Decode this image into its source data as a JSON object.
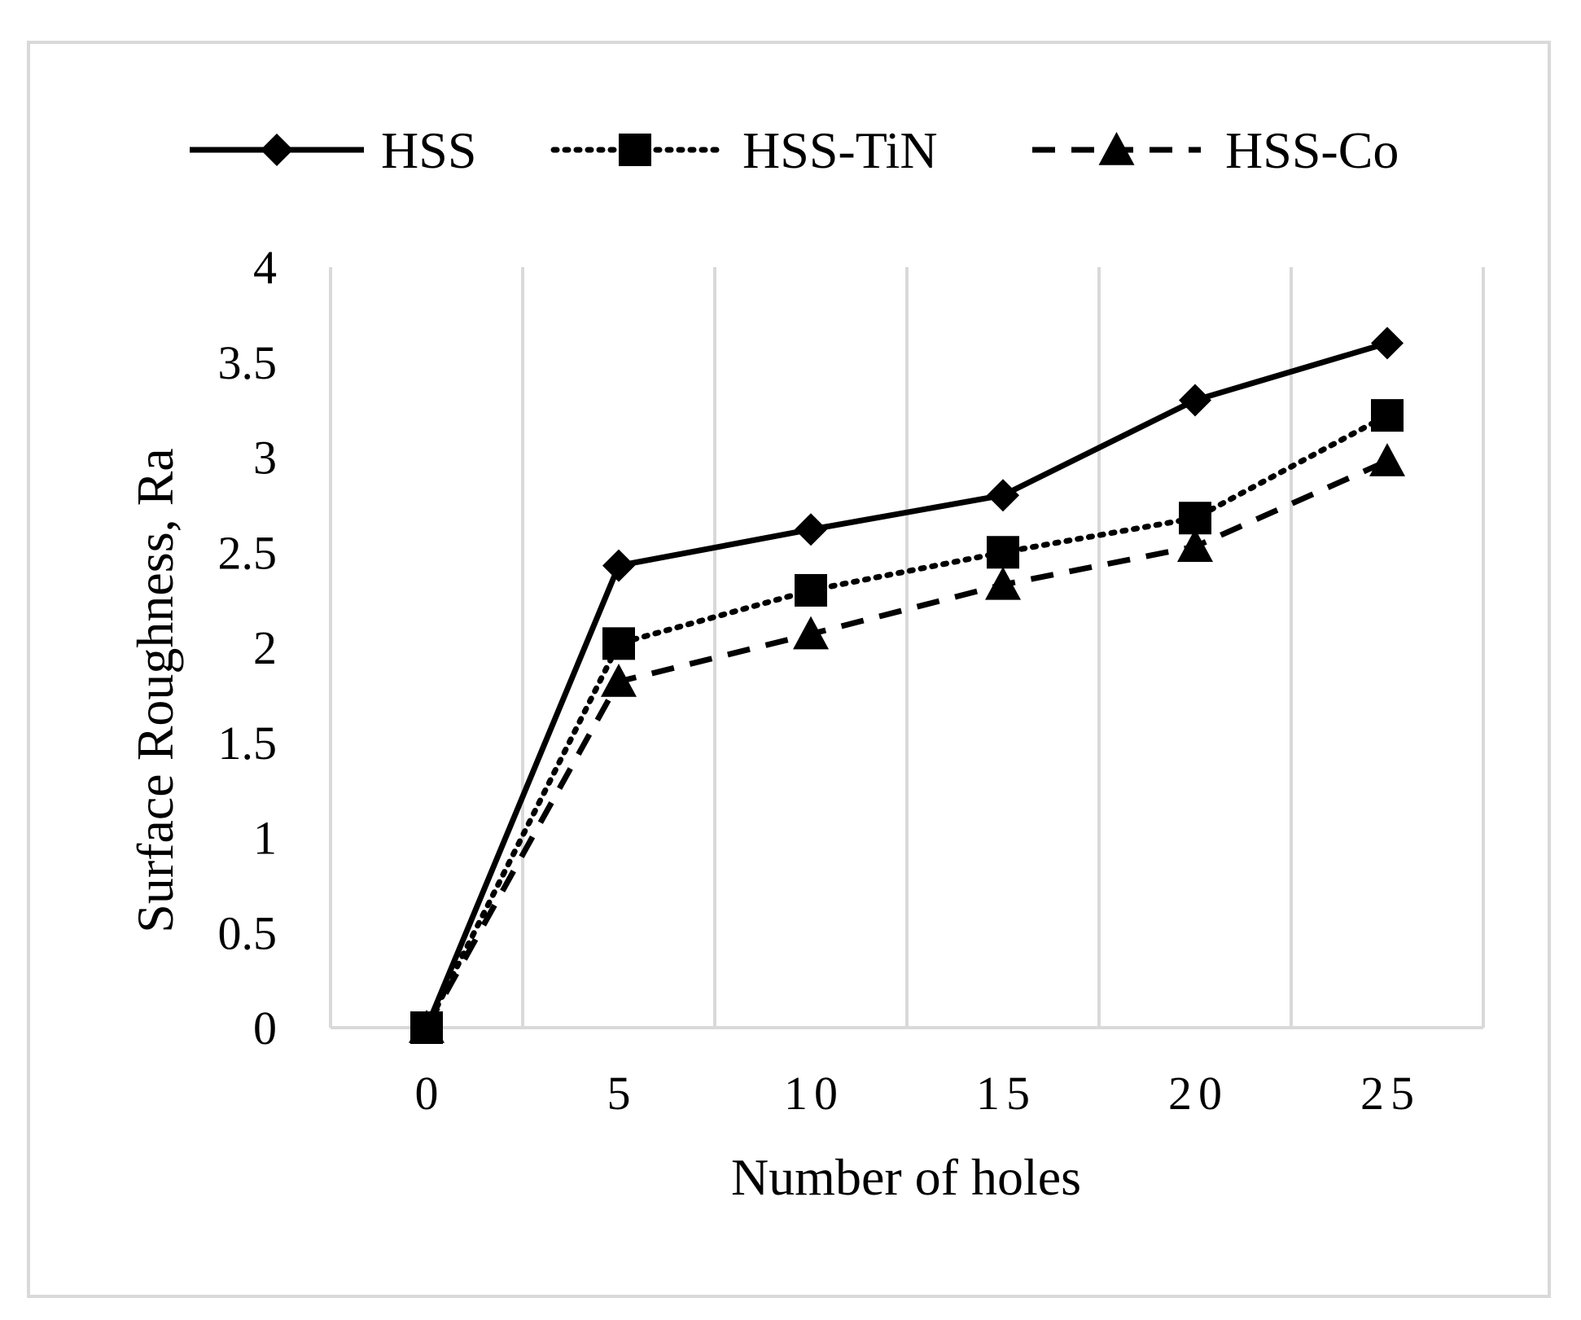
{
  "chart_data": {
    "type": "line",
    "title": "",
    "xlabel": "Number of holes",
    "ylabel": "Surface Roughness, Ra",
    "x": [
      0,
      5,
      10,
      15,
      20,
      25
    ],
    "x_tick_labels": [
      "0",
      "5",
      "10",
      "15",
      "20",
      "25"
    ],
    "y_tick_labels": [
      "0",
      "0.5",
      "1",
      "1.5",
      "2",
      "2.5",
      "3",
      "3.5",
      "4"
    ],
    "y_ticks": [
      0,
      0.5,
      1,
      1.5,
      2,
      2.5,
      3,
      3.5,
      4
    ],
    "ylim": [
      0,
      4
    ],
    "grid": "vertical",
    "legend_position": "top",
    "series": [
      {
        "name": "HSS",
        "values": [
          0,
          2.43,
          2.62,
          2.8,
          3.3,
          3.6
        ],
        "marker": "diamond",
        "line_style": "solid",
        "color": "#000000"
      },
      {
        "name": "HSS-TiN",
        "values": [
          0,
          2.02,
          2.3,
          2.5,
          2.68,
          3.22
        ],
        "marker": "square",
        "line_style": "dotted",
        "color": "#000000"
      },
      {
        "name": "HSS-Co",
        "values": [
          0,
          1.82,
          2.07,
          2.33,
          2.53,
          2.98
        ],
        "marker": "triangle",
        "line_style": "dashed",
        "color": "#000000"
      }
    ],
    "colors": {
      "gridline": "#d9d9d9",
      "border": "#d9d9d9"
    }
  }
}
